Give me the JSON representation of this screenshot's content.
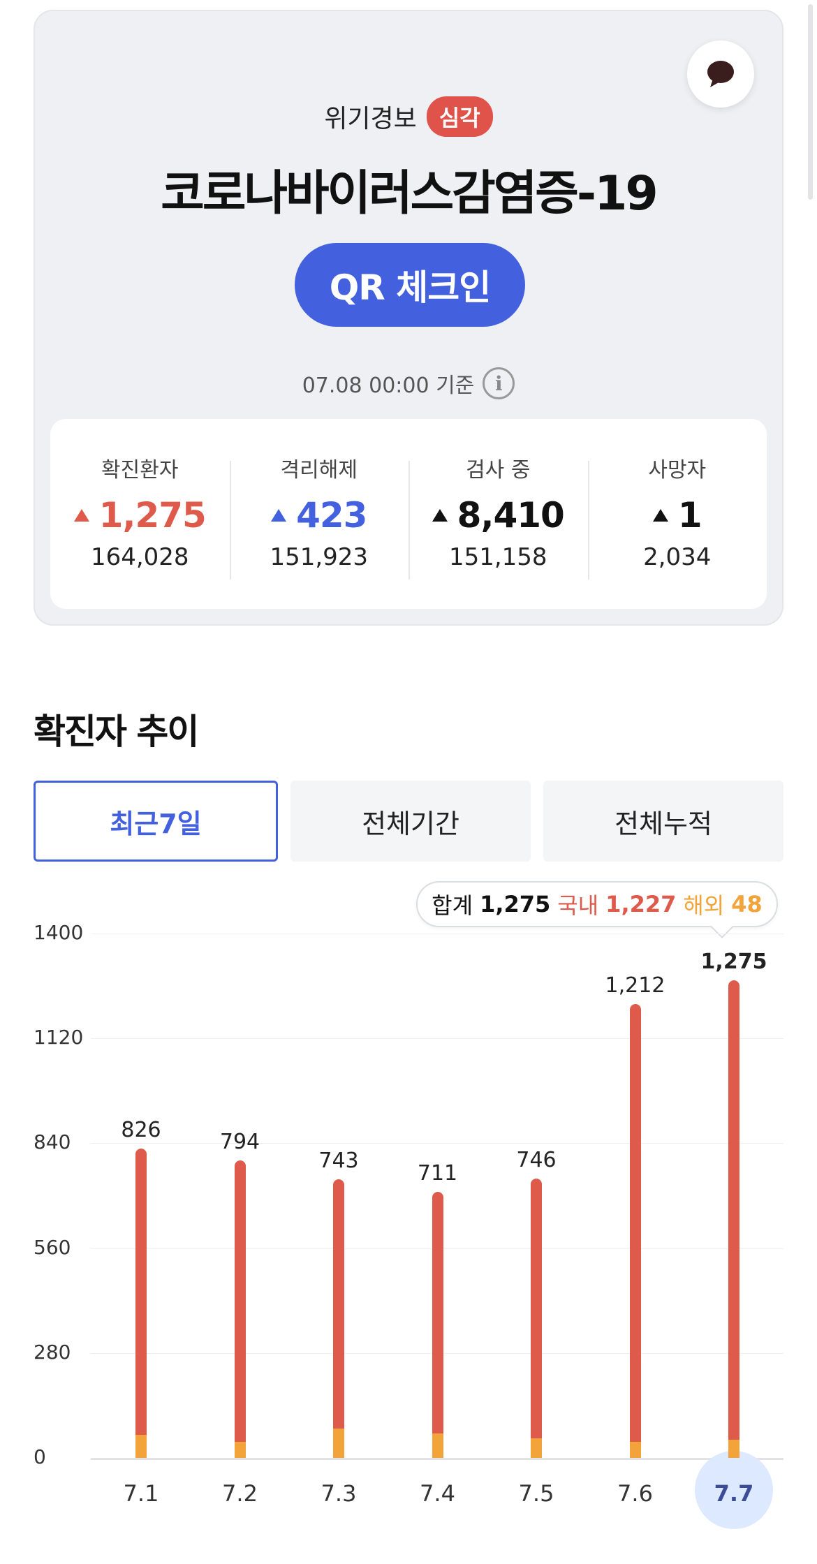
{
  "header": {
    "alert_label": "위기경보",
    "alert_level": "심각",
    "title": "코로나바이러스감염증-19",
    "qr_button": "QR 체크인",
    "timestamp": "07.08 00:00 기준",
    "info_icon": "i"
  },
  "stats": [
    {
      "label": "확진환자",
      "delta": "1,275",
      "total": "164,028",
      "color": "#de5a4a"
    },
    {
      "label": "격리해제",
      "delta": "423",
      "total": "151,923",
      "color": "#4361de"
    },
    {
      "label": "검사 중",
      "delta": "8,410",
      "total": "151,158",
      "color": "#111111"
    },
    {
      "label": "사망자",
      "delta": "1",
      "total": "2,034",
      "color": "#111111"
    }
  ],
  "section": {
    "title": "확진자 추이",
    "tabs": [
      "최근7일",
      "전체기간",
      "전체누적"
    ],
    "active_tab": 0
  },
  "tooltip": {
    "total_label": "합계",
    "total_value": "1,275",
    "domestic_label": "국내",
    "domestic_value": "1,227",
    "overseas_label": "해외",
    "overseas_value": "48"
  },
  "colors": {
    "accent": "#4361de",
    "domestic": "#de5a4a",
    "overseas": "#f2a33a",
    "selected_day_bg": "#dce9ff"
  },
  "chart_data": {
    "type": "bar",
    "stacked": true,
    "categories": [
      "7.1",
      "7.2",
      "7.3",
      "7.4",
      "7.5",
      "7.6",
      "7.7"
    ],
    "totals": [
      826,
      794,
      743,
      711,
      746,
      1212,
      1275
    ],
    "total_labels": [
      "826",
      "794",
      "743",
      "711",
      "746",
      "1,212",
      "1,275"
    ],
    "series": [
      {
        "name": "국내",
        "values": [
          765,
          752,
          664,
          646,
          693,
          1170,
          1227
        ]
      },
      {
        "name": "해외",
        "values": [
          61,
          42,
          79,
          65,
          53,
          42,
          48
        ]
      }
    ],
    "y_ticks": [
      0,
      280,
      560,
      840,
      1120,
      1400
    ],
    "ylim": [
      0,
      1400
    ],
    "selected_index": 6,
    "grid": true
  }
}
